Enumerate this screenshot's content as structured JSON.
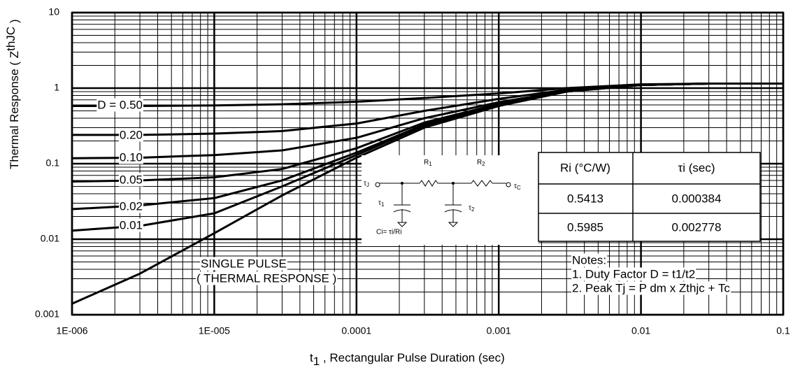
{
  "chart_data": {
    "type": "line",
    "xlabel": {
      "main": "t",
      "sub": "1",
      "end": " , Rectangular Pulse Duration (sec)"
    },
    "ylabel": {
      "main": "Thermal Response ( Z",
      "sub": "thJC",
      "end": " )"
    },
    "x": [
      1e-06,
      3e-06,
      1e-05,
      3e-05,
      0.0001,
      0.0003,
      0.001,
      0.003,
      0.01,
      0.03,
      0.1
    ],
    "xlim": [
      1e-06,
      0.1
    ],
    "ylim": [
      0.001,
      10
    ],
    "xticks": [
      {
        "value": 1e-06,
        "label": "1E-006"
      },
      {
        "value": 1e-05,
        "label": "1E-005"
      },
      0.0001,
      0.001,
      0.01,
      0.1
    ],
    "yticks": [
      0.001,
      0.01,
      0.1,
      1,
      10
    ],
    "xscale": "log",
    "yscale": "log",
    "grid": "major-minor",
    "color": "#000000",
    "series": [
      {
        "name": "D = 0.50",
        "color": "#000000",
        "values": [
          0.58,
          0.58,
          0.59,
          0.61,
          0.66,
          0.74,
          0.85,
          1.0,
          1.12,
          1.15,
          1.15
        ]
      },
      {
        "name": "0.20",
        "color": "#000000",
        "values": [
          0.24,
          0.24,
          0.25,
          0.27,
          0.34,
          0.5,
          0.72,
          0.95,
          1.1,
          1.15,
          1.15
        ]
      },
      {
        "name": "0.10",
        "color": "#000000",
        "values": [
          0.118,
          0.12,
          0.13,
          0.15,
          0.22,
          0.4,
          0.65,
          0.92,
          1.1,
          1.15,
          1.15
        ]
      },
      {
        "name": "0.05",
        "color": "#000000",
        "values": [
          0.058,
          0.06,
          0.066,
          0.085,
          0.16,
          0.35,
          0.62,
          0.91,
          1.1,
          1.15,
          1.15
        ]
      },
      {
        "name": "0.02",
        "color": "#000000",
        "values": [
          0.025,
          0.028,
          0.035,
          0.06,
          0.14,
          0.33,
          0.6,
          0.9,
          1.1,
          1.15,
          1.15
        ]
      },
      {
        "name": "0.01",
        "color": "#000000",
        "values": [
          0.013,
          0.015,
          0.022,
          0.05,
          0.13,
          0.32,
          0.59,
          0.9,
          1.1,
          1.15,
          1.15
        ]
      },
      {
        "name": "SINGLE PULSE",
        "color": "#000000",
        "values": [
          0.0014,
          0.0035,
          0.012,
          0.038,
          0.12,
          0.3,
          0.58,
          0.9,
          1.1,
          1.15,
          1.15
        ]
      }
    ],
    "annotation": "( THERMAL RESPONSE )",
    "circuit": {
      "tau_j": {
        "main": "τ",
        "sub": "J"
      },
      "tau_c": {
        "main": "τ",
        "sub": "C"
      },
      "r1": {
        "main": "R",
        "sub": "1"
      },
      "r2": {
        "main": "R",
        "sub": "2"
      },
      "tau_1": {
        "main": "τ",
        "sub": "1"
      },
      "tau_2": {
        "main": "τ",
        "sub": "2"
      },
      "ci": "Ci= τi/Ri"
    },
    "table": {
      "header": [
        "Ri (°C/W)",
        "τi (sec)"
      ],
      "rows": [
        [
          "0.5413",
          "0.000384"
        ],
        [
          "0.5985",
          "0.002778"
        ]
      ]
    },
    "notes": [
      "Notes:",
      "1. Duty Factor D = t1/t2",
      "2. Peak Tj = P dm x Zthjc + Tc"
    ]
  }
}
